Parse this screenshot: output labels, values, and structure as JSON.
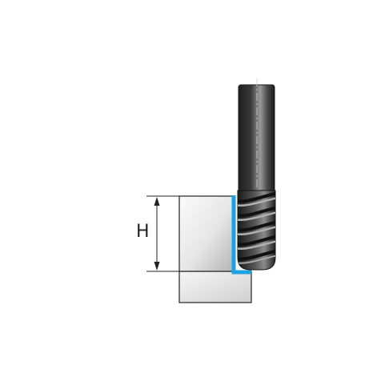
{
  "labels": {
    "height_symbol": "H"
  },
  "colors": {
    "cut_path": "#1aa3e0",
    "outline": "#222222",
    "tool_dark": "#2b2b2b",
    "tool_light": "#8a8a8a",
    "workpiece_light": "#f4f4f4",
    "workpiece_dark": "#b9b9b9"
  },
  "icons": {
    "tool": "end-mill-icon",
    "workpiece": "workpiece-block",
    "dimension": "dimension-arrow-icon"
  }
}
